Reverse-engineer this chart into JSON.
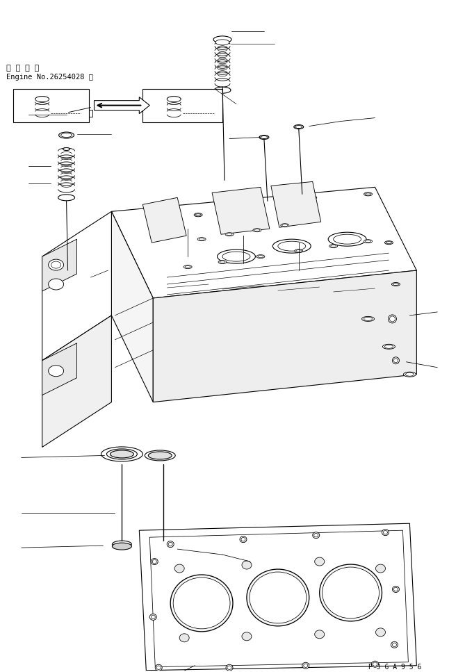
{
  "title": "",
  "background_color": "#ffffff",
  "line_color": "#000000",
  "text_color": "#000000",
  "top_left_text_line1": "適 用 号 機",
  "top_left_text_line2": "Engine No.26254028 ～",
  "watermark_text": "P J 6 A 9 5 6",
  "fig_width": 6.69,
  "fig_height": 9.67,
  "dpi": 100
}
